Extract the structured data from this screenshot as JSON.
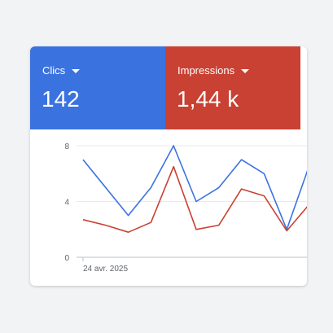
{
  "metrics": {
    "clicks": {
      "label": "Clics",
      "value": "142",
      "color": "#3a73df"
    },
    "impressions": {
      "label": "Impressions",
      "value": "1,44 k",
      "color": "#c94132"
    }
  },
  "chart_data": {
    "type": "line",
    "x_tick_label": "24 avr. 2025",
    "ylim": [
      0,
      8
    ],
    "y_ticks": [
      "0",
      "4",
      "8"
    ],
    "grid": true,
    "series": [
      {
        "name": "Clics",
        "color": "#3a73df",
        "values": [
          7,
          5,
          3,
          5,
          8,
          4,
          5,
          7,
          6,
          2,
          6.6
        ]
      },
      {
        "name": "Impressions",
        "color": "#c94132",
        "values": [
          2.7,
          2.3,
          1.8,
          2.5,
          6.5,
          2,
          2.3,
          4.9,
          4.4,
          1.9,
          3.8
        ]
      }
    ]
  }
}
